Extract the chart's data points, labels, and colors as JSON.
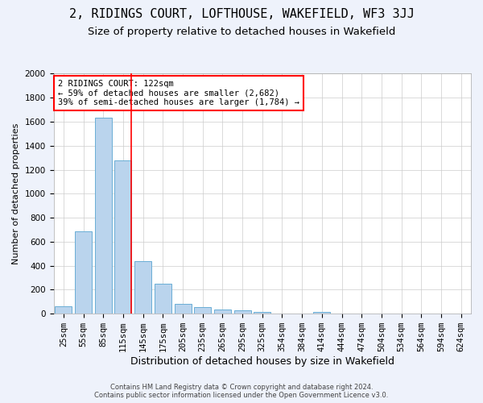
{
  "title": "2, RIDINGS COURT, LOFTHOUSE, WAKEFIELD, WF3 3JJ",
  "subtitle": "Size of property relative to detached houses in Wakefield",
  "xlabel": "Distribution of detached houses by size in Wakefield",
  "ylabel": "Number of detached properties",
  "footer_line1": "Contains HM Land Registry data © Crown copyright and database right 2024.",
  "footer_line2": "Contains public sector information licensed under the Open Government Licence v3.0.",
  "bin_labels": [
    "25sqm",
    "55sqm",
    "85sqm",
    "115sqm",
    "145sqm",
    "175sqm",
    "205sqm",
    "235sqm",
    "265sqm",
    "295sqm",
    "325sqm",
    "354sqm",
    "384sqm",
    "414sqm",
    "444sqm",
    "474sqm",
    "504sqm",
    "534sqm",
    "564sqm",
    "594sqm",
    "624sqm"
  ],
  "bar_values": [
    65,
    690,
    1635,
    1280,
    435,
    250,
    85,
    55,
    35,
    28,
    18,
    0,
    0,
    15,
    0,
    0,
    0,
    0,
    0,
    0,
    0
  ],
  "bar_color": "#bad4ed",
  "bar_edge_color": "#6aaed6",
  "subject_line_color": "red",
  "annotation_text": "2 RIDINGS COURT: 122sqm\n← 59% of detached houses are smaller (2,682)\n39% of semi-detached houses are larger (1,784) →",
  "annotation_box_color": "white",
  "annotation_box_edge_color": "red",
  "ylim": [
    0,
    2000
  ],
  "yticks": [
    0,
    200,
    400,
    600,
    800,
    1000,
    1200,
    1400,
    1600,
    1800,
    2000
  ],
  "background_color": "#eef2fb",
  "plot_background_color": "white",
  "title_fontsize": 11,
  "subtitle_fontsize": 9.5,
  "xlabel_fontsize": 9,
  "ylabel_fontsize": 8,
  "tick_fontsize": 7.5,
  "annotation_fontsize": 7.5,
  "footer_fontsize": 6
}
